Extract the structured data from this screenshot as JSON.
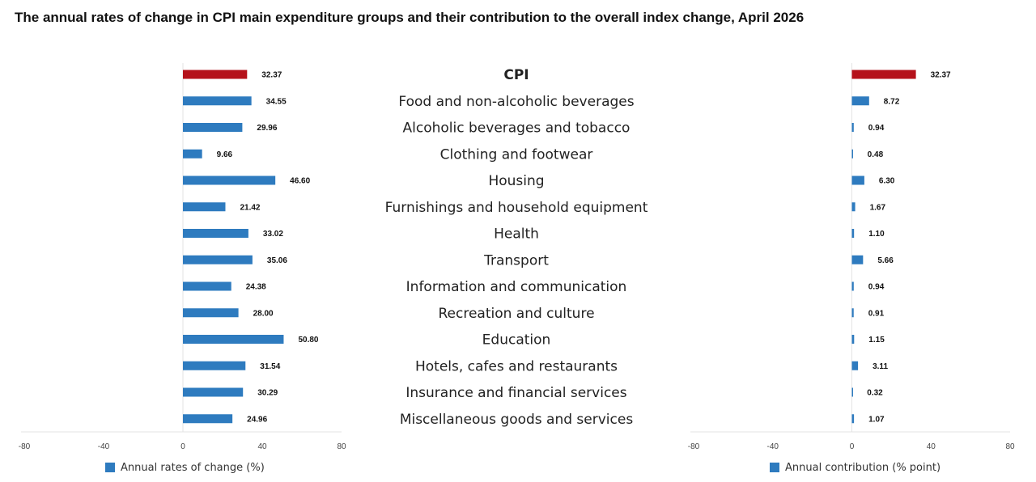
{
  "title": "The annual rates of change in CPI main expenditure groups and their contribution to the overall index change, April 2026",
  "colors": {
    "highlight": "#b5121b",
    "bar": "#2e7bbf"
  },
  "chart_data": {
    "type": "bar",
    "orientation": "horizontal",
    "categories": [
      "CPI",
      "Food and non-alcoholic beverages",
      "Alcoholic beverages and tobacco",
      "Clothing and footwear",
      "Housing",
      "Furnishings and household equipment",
      "Health",
      "Transport",
      "Information and communication",
      "Recreation and culture",
      "Education",
      "Hotels, cafes and restaurants",
      "Insurance and financial services",
      "Miscellaneous goods and services"
    ],
    "panels": [
      {
        "name": "Annual rates of change (%)",
        "values": [
          32.37,
          34.55,
          29.96,
          9.66,
          46.6,
          21.42,
          33.02,
          35.06,
          24.38,
          28.0,
          50.8,
          31.54,
          30.29,
          24.96
        ],
        "labels": [
          "32.37",
          "34.55",
          "29.96",
          "9.66",
          "46.60",
          "21.42",
          "33.02",
          "35.06",
          "24.38",
          "28.00",
          "50.80",
          "31.54",
          "30.29",
          "24.96"
        ],
        "xlim": [
          -80,
          80
        ],
        "ticks": [
          "-80",
          "-40",
          "0",
          "40",
          "80"
        ]
      },
      {
        "name": "Annual contribution (% point)",
        "values": [
          32.37,
          8.72,
          0.94,
          0.48,
          6.3,
          1.67,
          1.1,
          5.66,
          0.94,
          0.91,
          1.15,
          3.11,
          0.32,
          1.07
        ],
        "labels": [
          "32.37",
          "8.72",
          "0.94",
          "0.48",
          "6.30",
          "1.67",
          "1.10",
          "5.66",
          "0.94",
          "0.91",
          "1.15",
          "3.11",
          "0.32",
          "1.07"
        ],
        "xlim": [
          -80,
          80
        ],
        "ticks": [
          "-80",
          "-40",
          "0",
          "40",
          "80"
        ]
      }
    ],
    "highlight_category": "CPI",
    "legend_position": "bottom-left"
  }
}
